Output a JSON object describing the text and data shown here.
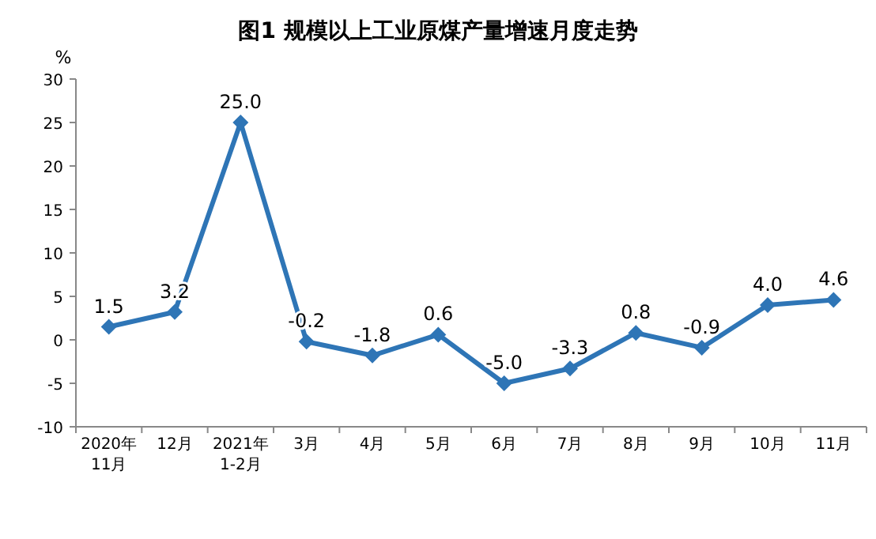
{
  "chart_data": {
    "type": "line",
    "title": "图1  规模以上工业原煤产量增速月度走势",
    "ylabel": "%",
    "categories": [
      "2020年\n11月",
      "12月",
      "2021年\n1-2月",
      "3月",
      "4月",
      "5月",
      "6月",
      "7月",
      "8月",
      "9月",
      "10月",
      "11月"
    ],
    "series": [
      {
        "color": "#2e75b6",
        "values": [
          1.5,
          3.2,
          25.0,
          -0.2,
          -1.8,
          0.6,
          -5.0,
          -3.3,
          0.8,
          -0.9,
          4.0,
          4.6
        ],
        "value_labels": [
          "1.5",
          "3.2",
          "25.0",
          "-0.2",
          "-1.8",
          "0.6",
          "-5.0",
          "-3.3",
          "0.8",
          "-0.9",
          "4.0",
          "4.6"
        ]
      }
    ],
    "ylim": [
      -10,
      30
    ],
    "yticks": [
      -10,
      -5,
      0,
      5,
      10,
      15,
      20,
      25,
      30
    ],
    "marker": "diamond",
    "line_style": "solid",
    "grid": false
  }
}
